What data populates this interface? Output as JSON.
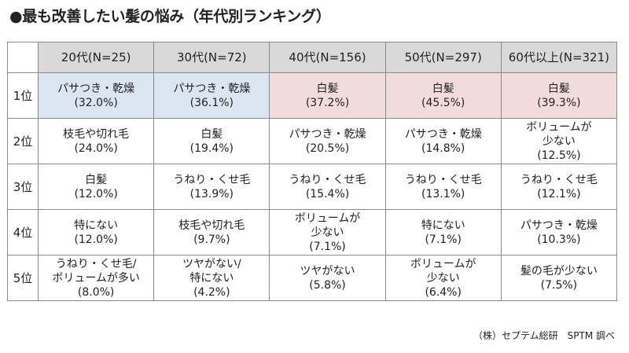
{
  "title": "●最も改善したい髪の悩み（年代別ランキング）",
  "source": "（株）セプテム総研　SPTM 調べ",
  "chart_data": {
    "type": "table",
    "columns": [
      "20代(N=25)",
      "30代(N=72)",
      "40代(N=156)",
      "50代(N=297)",
      "60代以上(N=321)"
    ],
    "rows": [
      {
        "rank": "1位",
        "cells": [
          {
            "item": "パサつき・乾燥",
            "value": "(32.0%)",
            "highlight": "#dce6f2"
          },
          {
            "item": "パサつき・乾燥",
            "value": "(36.1%)",
            "highlight": "#dce6f2"
          },
          {
            "item": "白髪",
            "value": "(37.2%)",
            "highlight": "#f2dcdb"
          },
          {
            "item": "白髪",
            "value": "(45.5%)",
            "highlight": "#f2dcdb"
          },
          {
            "item": "白髪",
            "value": "(39.3%)",
            "highlight": "#f2dcdb"
          }
        ]
      },
      {
        "rank": "2位",
        "cells": [
          {
            "item": "枝毛や切れ毛",
            "value": "(24.0%)"
          },
          {
            "item": "白髪",
            "value": "(19.4%)"
          },
          {
            "item": "パサつき・乾燥",
            "value": "(20.5%)"
          },
          {
            "item": "パサつき・乾燥",
            "value": "(14.8%)"
          },
          {
            "item": "ボリュームが\n少ない",
            "value": "(12.5%)"
          }
        ]
      },
      {
        "rank": "3位",
        "cells": [
          {
            "item": "白髪",
            "value": "(12.0%)"
          },
          {
            "item": "うねり・くせ毛",
            "value": "(13.9%)"
          },
          {
            "item": "うねり・くせ毛",
            "value": "(15.4%)"
          },
          {
            "item": "うねり・くせ毛",
            "value": "(13.1%)"
          },
          {
            "item": "うねり・くせ毛",
            "value": "(12.1%)"
          }
        ]
      },
      {
        "rank": "4位",
        "cells": [
          {
            "item": "特にない",
            "value": "(12.0%)"
          },
          {
            "item": "枝毛や切れ毛",
            "value": "(9.7%)"
          },
          {
            "item": "ボリュームが\n少ない",
            "value": "(7.1%)"
          },
          {
            "item": "特にない",
            "value": "(7.1%)"
          },
          {
            "item": "パサつき・乾燥",
            "value": "(10.3%)"
          }
        ]
      },
      {
        "rank": "5位",
        "cells": [
          {
            "item": "うねり・くせ毛/\nボリュームが多い",
            "value": "(8.0%)"
          },
          {
            "item": "ツヤがない/\n特にない",
            "value": "(4.2%)"
          },
          {
            "item": "ツヤがない",
            "value": "(5.8%)"
          },
          {
            "item": "ボリュームが\n少ない",
            "value": "(6.4%)"
          },
          {
            "item": "髪の毛が少ない",
            "value": "(7.5%)"
          }
        ]
      }
    ]
  }
}
